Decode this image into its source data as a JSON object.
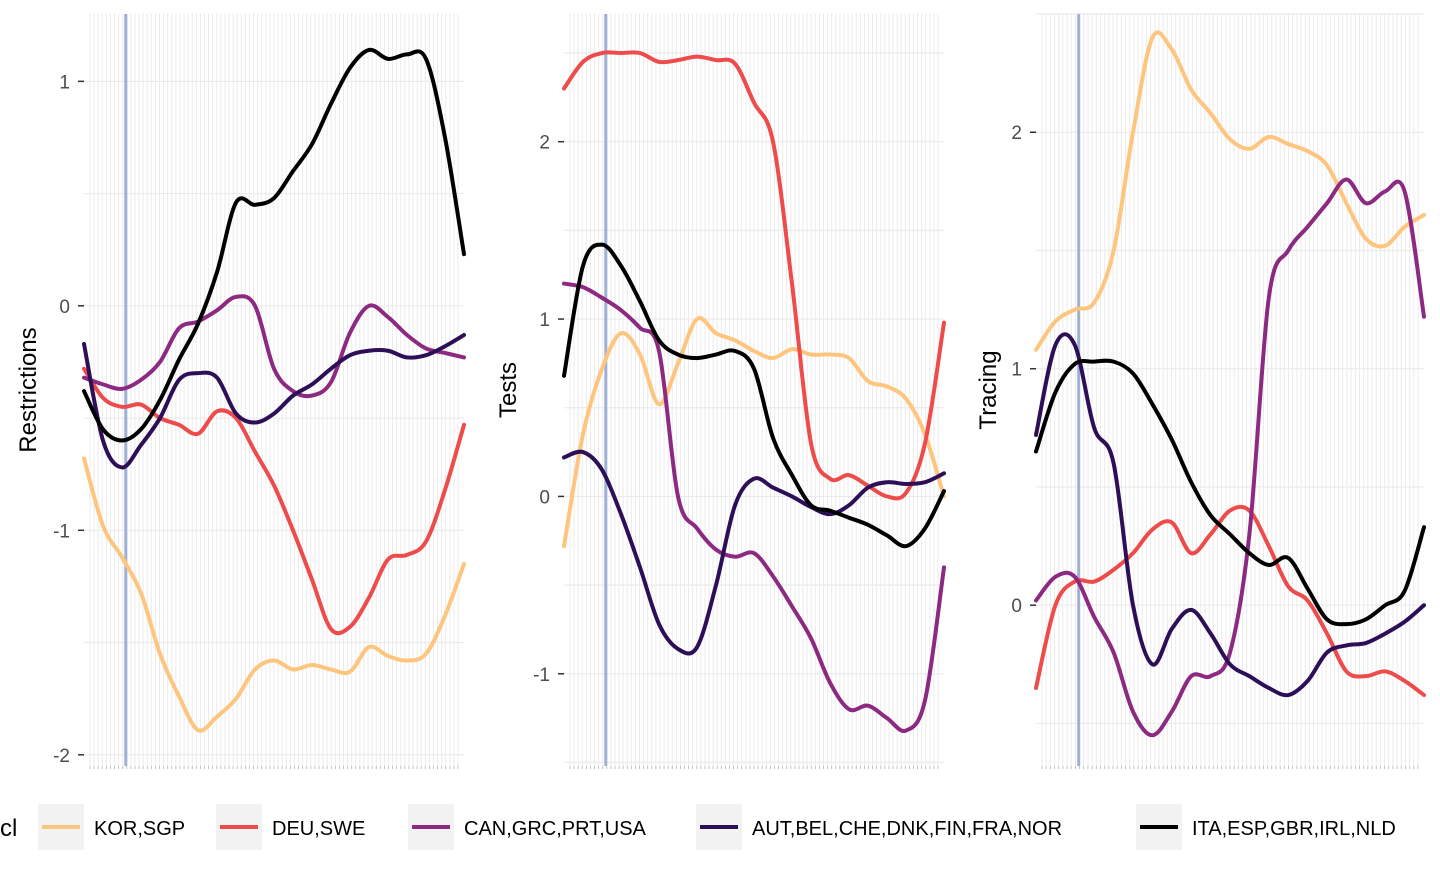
{
  "legend": {
    "title": "cl",
    "items": [
      {
        "label": "KOR,SGP",
        "color": "#FEC57F"
      },
      {
        "label": "DEU,SWE",
        "color": "#EE4B4B"
      },
      {
        "label": "CAN,GRC,PRT,USA",
        "color": "#8C2981"
      },
      {
        "label": "AUT,BEL,CHE,DNK,FIN,FRA,NOR",
        "color": "#2D0F57"
      },
      {
        "label": "ITA,ESP,GBR,IRL,NLD",
        "color": "#000000"
      }
    ]
  },
  "chart_data": [
    {
      "type": "line",
      "ylabel": "Restrictions",
      "xlabel": "",
      "xlim": [
        0,
        100
      ],
      "ylim": [
        -2.05,
        1.3
      ],
      "yticks": [
        -2,
        -1,
        0,
        1
      ],
      "ytick_labels": [
        "-2",
        "-1",
        "0",
        "1"
      ],
      "vline_x": 11,
      "grid": true,
      "x": [
        0,
        5,
        10,
        15,
        20,
        25,
        30,
        35,
        40,
        45,
        50,
        55,
        60,
        65,
        70,
        75,
        80,
        85,
        90,
        95,
        100
      ],
      "series": [
        {
          "name": "KOR,SGP",
          "color": "#FEC57F",
          "values": [
            -0.68,
            -0.98,
            -1.12,
            -1.28,
            -1.55,
            -1.74,
            -1.89,
            -1.83,
            -1.75,
            -1.62,
            -1.58,
            -1.62,
            -1.6,
            -1.62,
            -1.63,
            -1.52,
            -1.56,
            -1.58,
            -1.55,
            -1.38,
            -1.15
          ]
        },
        {
          "name": "DEU,SWE",
          "color": "#EE4B4B",
          "values": [
            -0.28,
            -0.41,
            -0.45,
            -0.44,
            -0.5,
            -0.53,
            -0.57,
            -0.47,
            -0.5,
            -0.65,
            -0.8,
            -1.0,
            -1.22,
            -1.44,
            -1.43,
            -1.3,
            -1.13,
            -1.11,
            -1.05,
            -0.82,
            -0.53
          ]
        },
        {
          "name": "CAN,GRC,PRT,USA",
          "color": "#8C2981",
          "values": [
            -0.32,
            -0.35,
            -0.37,
            -0.33,
            -0.25,
            -0.1,
            -0.07,
            -0.02,
            0.04,
            0.0,
            -0.28,
            -0.38,
            -0.4,
            -0.34,
            -0.12,
            0.0,
            -0.05,
            -0.13,
            -0.19,
            -0.21,
            -0.23
          ]
        },
        {
          "name": "AUT,BEL,CHE,DNK,FIN,FRA,NOR",
          "color": "#2D0F57",
          "values": [
            -0.17,
            -0.6,
            -0.72,
            -0.62,
            -0.5,
            -0.33,
            -0.3,
            -0.32,
            -0.48,
            -0.52,
            -0.48,
            -0.4,
            -0.35,
            -0.28,
            -0.22,
            -0.2,
            -0.2,
            -0.23,
            -0.22,
            -0.18,
            -0.13
          ]
        },
        {
          "name": "ITA,ESP,GBR,IRL,NLD",
          "color": "#000000",
          "values": [
            -0.38,
            -0.55,
            -0.6,
            -0.55,
            -0.42,
            -0.24,
            -0.08,
            0.15,
            0.46,
            0.45,
            0.48,
            0.6,
            0.72,
            0.9,
            1.06,
            1.14,
            1.1,
            1.12,
            1.1,
            0.75,
            0.23
          ]
        }
      ]
    },
    {
      "type": "line",
      "ylabel": "Tests",
      "xlabel": "",
      "xlim": [
        0,
        100
      ],
      "ylim": [
        -1.52,
        2.72
      ],
      "yticks": [
        -1,
        0,
        1,
        2
      ],
      "ytick_labels": [
        "-1",
        "0",
        "1",
        "2"
      ],
      "vline_x": 11,
      "grid": true,
      "x": [
        0,
        5,
        10,
        15,
        20,
        25,
        30,
        35,
        40,
        45,
        50,
        55,
        60,
        65,
        70,
        75,
        80,
        85,
        90,
        95,
        100
      ],
      "series": [
        {
          "name": "KOR,SGP",
          "color": "#FEC57F",
          "values": [
            -0.28,
            0.35,
            0.72,
            0.92,
            0.8,
            0.52,
            0.75,
            1.0,
            0.92,
            0.88,
            0.82,
            0.78,
            0.83,
            0.8,
            0.8,
            0.78,
            0.65,
            0.62,
            0.55,
            0.35,
            0.0
          ]
        },
        {
          "name": "DEU,SWE",
          "color": "#EE4B4B",
          "values": [
            2.3,
            2.45,
            2.5,
            2.5,
            2.5,
            2.45,
            2.46,
            2.48,
            2.46,
            2.44,
            2.22,
            2.0,
            1.2,
            0.3,
            0.1,
            0.12,
            0.06,
            0.0,
            0.02,
            0.3,
            0.98
          ]
        },
        {
          "name": "CAN,GRC,PRT,USA",
          "color": "#8C2981",
          "values": [
            1.2,
            1.18,
            1.12,
            1.05,
            0.95,
            0.82,
            0.0,
            -0.18,
            -0.3,
            -0.34,
            -0.32,
            -0.45,
            -0.62,
            -0.8,
            -1.05,
            -1.2,
            -1.18,
            -1.25,
            -1.32,
            -1.15,
            -0.4
          ]
        },
        {
          "name": "AUT,BEL,CHE,DNK,FIN,FRA,NOR",
          "color": "#2D0F57",
          "values": [
            0.22,
            0.25,
            0.15,
            -0.1,
            -0.4,
            -0.72,
            -0.86,
            -0.85,
            -0.5,
            -0.05,
            0.1,
            0.05,
            0.0,
            -0.06,
            -0.1,
            -0.05,
            0.05,
            0.08,
            0.07,
            0.08,
            0.13
          ]
        },
        {
          "name": "ITA,ESP,GBR,IRL,NLD",
          "color": "#000000",
          "values": [
            0.68,
            1.3,
            1.42,
            1.3,
            1.1,
            0.88,
            0.8,
            0.78,
            0.8,
            0.82,
            0.72,
            0.33,
            0.12,
            -0.05,
            -0.08,
            -0.12,
            -0.16,
            -0.22,
            -0.28,
            -0.18,
            0.03
          ]
        }
      ]
    },
    {
      "type": "line",
      "ylabel": "Tracing",
      "xlabel": "",
      "xlim": [
        0,
        100
      ],
      "ylim": [
        -0.68,
        2.5
      ],
      "yticks": [
        0,
        1,
        2
      ],
      "ytick_labels": [
        "0",
        "1",
        "2"
      ],
      "vline_x": 11,
      "grid": true,
      "x": [
        0,
        5,
        10,
        15,
        20,
        25,
        30,
        35,
        40,
        45,
        50,
        55,
        60,
        65,
        70,
        75,
        80,
        85,
        90,
        95,
        100
      ],
      "series": [
        {
          "name": "KOR,SGP",
          "color": "#FEC57F",
          "values": [
            1.08,
            1.2,
            1.25,
            1.28,
            1.5,
            2.0,
            2.4,
            2.35,
            2.18,
            2.08,
            1.97,
            1.93,
            1.98,
            1.95,
            1.92,
            1.86,
            1.7,
            1.55,
            1.52,
            1.6,
            1.65
          ]
        },
        {
          "name": "DEU,SWE",
          "color": "#EE4B4B",
          "values": [
            -0.35,
            0.0,
            0.1,
            0.1,
            0.15,
            0.22,
            0.32,
            0.35,
            0.22,
            0.3,
            0.4,
            0.4,
            0.25,
            0.08,
            0.02,
            -0.12,
            -0.28,
            -0.3,
            -0.28,
            -0.32,
            -0.38
          ]
        },
        {
          "name": "CAN,GRC,PRT,USA",
          "color": "#8C2981",
          "values": [
            0.02,
            0.12,
            0.12,
            -0.05,
            -0.2,
            -0.45,
            -0.55,
            -0.45,
            -0.3,
            -0.3,
            -0.2,
            0.3,
            1.3,
            1.5,
            1.6,
            1.7,
            1.8,
            1.7,
            1.75,
            1.75,
            1.22
          ]
        },
        {
          "name": "AUT,BEL,CHE,DNK,FIN,FRA,NOR",
          "color": "#2D0F57",
          "values": [
            0.72,
            1.1,
            1.1,
            0.75,
            0.6,
            0.0,
            -0.25,
            -0.1,
            -0.02,
            -0.12,
            -0.25,
            -0.3,
            -0.35,
            -0.38,
            -0.32,
            -0.2,
            -0.17,
            -0.16,
            -0.12,
            -0.07,
            0.0
          ]
        },
        {
          "name": "ITA,ESP,GBR,IRL,NLD",
          "color": "#000000",
          "values": [
            0.65,
            0.9,
            1.02,
            1.03,
            1.03,
            0.98,
            0.85,
            0.7,
            0.52,
            0.38,
            0.3,
            0.22,
            0.17,
            0.2,
            0.07,
            -0.06,
            -0.08,
            -0.06,
            0.0,
            0.06,
            0.33
          ]
        }
      ]
    }
  ]
}
